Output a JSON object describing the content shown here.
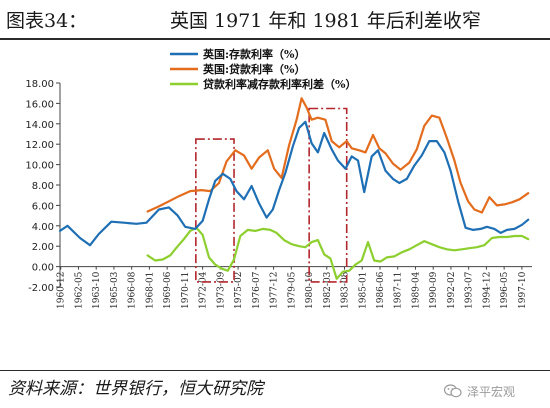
{
  "figure": {
    "label": "图表34：",
    "title": "英国 1971 年和 1981 年后利差收窄",
    "source": "资料来源：世界银行，恒大研究院",
    "watermark": "泽平宏观",
    "watermark_icon": "wechat-icon"
  },
  "chart_data": {
    "type": "line",
    "title": "",
    "xlabel": "",
    "ylabel": "",
    "ylim": [
      -2,
      18
    ],
    "yticks": [
      "-2.00",
      "0.00",
      "2.00",
      "4.00",
      "6.00",
      "8.00",
      "10.00",
      "12.00",
      "14.00",
      "16.00",
      "18.00"
    ],
    "xticks": [
      "1960-12",
      "1962-05",
      "1963-10",
      "1965-03",
      "1966-08",
      "1968-01",
      "1969-06",
      "1970-11",
      "1972-04",
      "1973-09",
      "1975-02",
      "1976-07",
      "1977-12",
      "1979-05",
      "1980-10",
      "1982-03",
      "1983-08",
      "1985-01",
      "1986-06",
      "1987-11",
      "1989-04",
      "1990-09",
      "1992-02",
      "1993-07",
      "1994-12",
      "1996-05",
      "1997-10"
    ],
    "grid": false,
    "legend_position": "top-center",
    "highlight_boxes": [
      {
        "x_start": 1971.75,
        "x_end": 1974.8,
        "y_min": -1.5,
        "y_max": 12.5
      },
      {
        "x_start": 1980.8,
        "x_end": 1983.8,
        "y_min": -1.5,
        "y_max": 15.5
      }
    ],
    "series": [
      {
        "name": "英国:存款利率（%）",
        "color": "#1f6fb5",
        "x": [
          1960.9,
          1961.5,
          1962.5,
          1963.3,
          1964,
          1965,
          1966,
          1967,
          1967.8,
          1968.8,
          1969.6,
          1970.3,
          1970.9,
          1971.7,
          1972.3,
          1972.8,
          1973.3,
          1973.9,
          1974.5,
          1975,
          1975.6,
          1976.2,
          1976.8,
          1977.4,
          1977.9,
          1978.4,
          1978.9,
          1979.5,
          1980,
          1980.5,
          1981,
          1981.5,
          1982,
          1982.6,
          1983.1,
          1983.7,
          1984.2,
          1984.7,
          1985.2,
          1985.8,
          1986.3,
          1986.9,
          1987.5,
          1988,
          1988.6,
          1989.2,
          1989.8,
          1990.4,
          1991,
          1991.6,
          1992.1,
          1992.7,
          1993.3,
          1993.9,
          1994.5,
          1995,
          1995.6,
          1996.1,
          1996.6,
          1997.2,
          1997.8,
          1998.3
        ],
        "values": [
          3.5,
          4.0,
          2.8,
          2.1,
          3.2,
          4.4,
          4.3,
          4.2,
          4.3,
          5.6,
          5.8,
          5.0,
          3.9,
          3.7,
          4.5,
          6.6,
          8.4,
          9.1,
          8.6,
          7.4,
          6.6,
          7.9,
          6.2,
          4.8,
          5.6,
          7.5,
          9.2,
          11.8,
          13.6,
          14.2,
          12.1,
          11.2,
          13.1,
          11.5,
          10.4,
          9.6,
          10.8,
          10.4,
          7.3,
          10.8,
          11.4,
          9.4,
          8.6,
          8.2,
          8.6,
          9.9,
          10.9,
          12.3,
          12.3,
          11.2,
          9.4,
          6.4,
          3.8,
          3.6,
          3.7,
          3.9,
          3.7,
          3.3,
          3.6,
          3.7,
          4.1,
          4.6
        ]
      },
      {
        "name": "英国:贷款利率（%）",
        "color": "#e36c1d",
        "x": [
          1967.9,
          1968.8,
          1969.6,
          1970.4,
          1971.3,
          1972.2,
          1972.9,
          1973.6,
          1974.2,
          1974.9,
          1975.6,
          1976.2,
          1976.8,
          1977.5,
          1978,
          1978.6,
          1979.2,
          1979.8,
          1980.2,
          1980.6,
          1981,
          1981.5,
          1982.1,
          1982.6,
          1983.2,
          1983.8,
          1984.2,
          1984.8,
          1985.3,
          1985.9,
          1986.4,
          1986.9,
          1987.5,
          1988.1,
          1988.8,
          1989.4,
          1990,
          1990.6,
          1991.2,
          1991.8,
          1992.4,
          1992.9,
          1993.5,
          1994,
          1994.6,
          1995.2,
          1995.8,
          1996.4,
          1997,
          1997.6,
          1998.3
        ],
        "values": [
          5.4,
          5.9,
          6.4,
          6.9,
          7.4,
          7.5,
          7.4,
          8.2,
          10.3,
          11.4,
          10.9,
          9.6,
          10.7,
          11.4,
          9.6,
          8.7,
          11.9,
          14.4,
          16.5,
          15.6,
          14.4,
          14.6,
          14.4,
          12.3,
          11.7,
          12.3,
          11.6,
          11.4,
          11.2,
          12.9,
          11.6,
          11.1,
          10.1,
          9.5,
          10.2,
          11.5,
          13.8,
          14.8,
          14.6,
          12.6,
          10.4,
          8.2,
          6.4,
          5.6,
          5.3,
          6.8,
          6.0,
          6.1,
          6.3,
          6.6,
          7.2
        ]
      },
      {
        "name": "贷款利率减存款利率利差（%）",
        "color": "#8ccf2e",
        "x": [
          1967.9,
          1968.5,
          1969.1,
          1969.7,
          1970.3,
          1970.8,
          1971.3,
          1971.8,
          1972.3,
          1972.8,
          1973.3,
          1973.8,
          1974.3,
          1974.8,
          1975.3,
          1975.9,
          1976.5,
          1977.1,
          1977.7,
          1978.2,
          1978.8,
          1979.4,
          1980,
          1980.5,
          1981,
          1981.5,
          1982,
          1982.5,
          1983,
          1983.5,
          1984,
          1984.5,
          1985,
          1985.5,
          1986,
          1986.5,
          1987,
          1987.6,
          1988.2,
          1988.8,
          1989.4,
          1990,
          1990.6,
          1991.2,
          1991.8,
          1992.4,
          1993,
          1993.6,
          1994.2,
          1994.8,
          1995.4,
          1996,
          1996.6,
          1997.2,
          1997.8,
          1998.3
        ],
        "values": [
          1.1,
          0.6,
          0.7,
          1.1,
          2.0,
          2.7,
          3.5,
          3.8,
          3.1,
          0.9,
          0.2,
          -0.2,
          -0.4,
          0.7,
          3.0,
          3.6,
          3.5,
          3.7,
          3.6,
          3.3,
          2.6,
          2.2,
          2.0,
          1.9,
          2.4,
          2.6,
          1.2,
          0.8,
          -1.2,
          -0.5,
          -0.4,
          0.2,
          0.6,
          2.4,
          0.6,
          0.5,
          0.9,
          1.0,
          1.4,
          1.7,
          2.1,
          2.5,
          2.2,
          1.9,
          1.7,
          1.6,
          1.7,
          1.8,
          1.9,
          2.1,
          2.8,
          2.9,
          2.9,
          3.0,
          3.0,
          2.7
        ]
      }
    ]
  }
}
